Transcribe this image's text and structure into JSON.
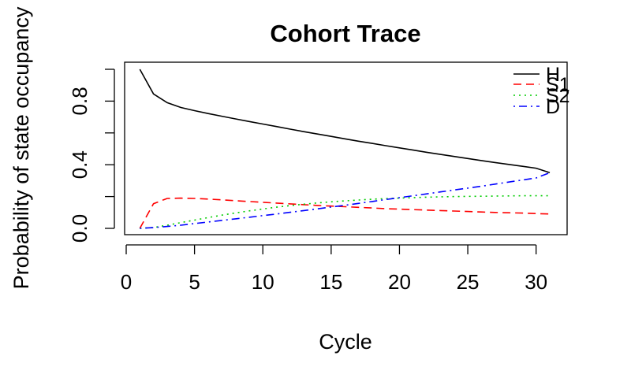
{
  "chart_data": {
    "type": "line",
    "title": "Cohort Trace",
    "xlabel": "Cycle",
    "ylabel": "Probability of state occupancy",
    "xlim": [
      0,
      31
    ],
    "ylim": [
      0,
      1
    ],
    "x_ticks": [
      0,
      5,
      10,
      15,
      20,
      25,
      30
    ],
    "y_ticks": [
      0.0,
      0.2,
      0.4,
      0.6,
      0.8,
      1.0
    ],
    "y_tick_labels": [
      "0.0",
      "",
      "0.4",
      "",
      "0.8",
      ""
    ],
    "grid": false,
    "legend_position": "top-right",
    "x": [
      1,
      2,
      3,
      4,
      5,
      6,
      7,
      8,
      9,
      10,
      11,
      12,
      13,
      14,
      15,
      16,
      17,
      18,
      19,
      20,
      21,
      22,
      23,
      24,
      25,
      26,
      27,
      28,
      29,
      30,
      31
    ],
    "series": [
      {
        "name": "H",
        "color": "#000000",
        "dash": "solid",
        "values": [
          1.0,
          0.845,
          0.79,
          0.76,
          0.74,
          0.722,
          0.705,
          0.688,
          0.672,
          0.656,
          0.64,
          0.624,
          0.608,
          0.593,
          0.578,
          0.563,
          0.548,
          0.534,
          0.52,
          0.506,
          0.492,
          0.478,
          0.465,
          0.452,
          0.439,
          0.426,
          0.414,
          0.402,
          0.39,
          0.378,
          0.35
        ]
      },
      {
        "name": "S1",
        "color": "#ff0000",
        "dash": "dashed",
        "values": [
          0.0,
          0.155,
          0.188,
          0.19,
          0.188,
          0.184,
          0.179,
          0.174,
          0.169,
          0.164,
          0.159,
          0.154,
          0.149,
          0.144,
          0.14,
          0.136,
          0.132,
          0.128,
          0.124,
          0.121,
          0.118,
          0.115,
          0.112,
          0.109,
          0.106,
          0.103,
          0.1,
          0.098,
          0.096,
          0.093,
          0.09
        ]
      },
      {
        "name": "S2",
        "color": "#00cc00",
        "dash": "dotted",
        "values": [
          0.0,
          0.005,
          0.02,
          0.036,
          0.052,
          0.068,
          0.083,
          0.097,
          0.11,
          0.122,
          0.133,
          0.143,
          0.152,
          0.16,
          0.167,
          0.173,
          0.178,
          0.183,
          0.187,
          0.19,
          0.193,
          0.196,
          0.198,
          0.2,
          0.201,
          0.202,
          0.203,
          0.204,
          0.205,
          0.205,
          0.205
        ]
      },
      {
        "name": "D",
        "color": "#0000ff",
        "dash": "dotdash",
        "values": [
          0.0,
          0.005,
          0.012,
          0.02,
          0.03,
          0.04,
          0.05,
          0.06,
          0.07,
          0.08,
          0.09,
          0.101,
          0.112,
          0.123,
          0.134,
          0.145,
          0.157,
          0.169,
          0.181,
          0.193,
          0.205,
          0.217,
          0.229,
          0.241,
          0.253,
          0.265,
          0.278,
          0.291,
          0.304,
          0.317,
          0.35
        ]
      }
    ]
  }
}
